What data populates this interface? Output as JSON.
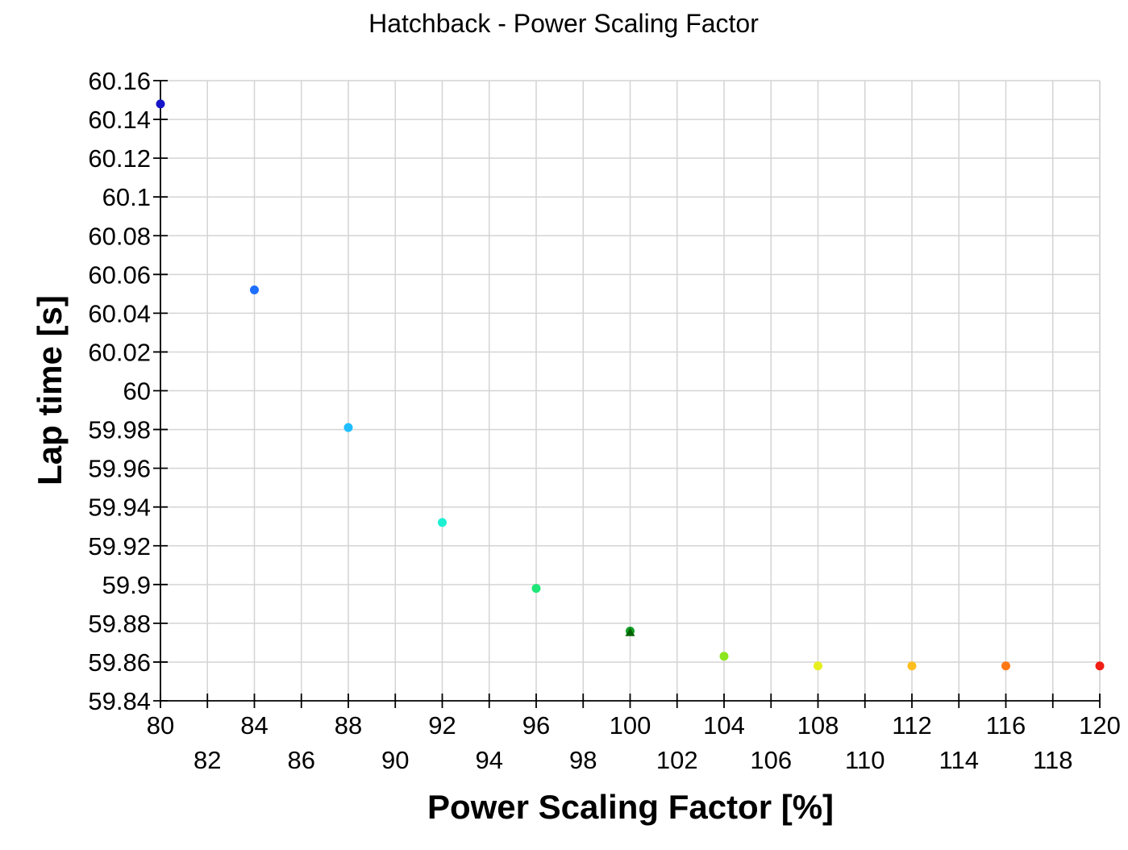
{
  "chart_data": {
    "type": "scatter",
    "title": "Hatchback - Power Scaling Factor",
    "xlabel": "Power Scaling Factor [%]",
    "ylabel": "Lap time [s]",
    "xlim": [
      80,
      120
    ],
    "ylim": [
      59.84,
      60.16
    ],
    "grid": true,
    "x_ticks_row1": [
      "80",
      "84",
      "88",
      "92",
      "96",
      "100",
      "104",
      "108",
      "112",
      "116",
      "120"
    ],
    "x_ticks_row2": [
      "82",
      "86",
      "90",
      "94",
      "98",
      "102",
      "106",
      "110",
      "114",
      "118"
    ],
    "y_ticks": [
      "60.16",
      "60.14",
      "60.12",
      "60.1",
      "60.08",
      "60.06",
      "60.04",
      "60.02",
      "60",
      "59.98",
      "59.96",
      "59.94",
      "59.92",
      "59.9",
      "59.88",
      "59.86",
      "59.84"
    ],
    "points": [
      {
        "x": 80,
        "y": 60.148,
        "color": "#1414c8"
      },
      {
        "x": 84,
        "y": 60.052,
        "color": "#1e6eff"
      },
      {
        "x": 88,
        "y": 59.981,
        "color": "#1ebeff"
      },
      {
        "x": 92,
        "y": 59.932,
        "color": "#1ef0d2"
      },
      {
        "x": 96,
        "y": 59.898,
        "color": "#1ee678"
      },
      {
        "x": 100,
        "y": 59.876,
        "color": "#14a028"
      },
      {
        "x": 104,
        "y": 59.863,
        "color": "#8ce61e"
      },
      {
        "x": 108,
        "y": 59.858,
        "color": "#e6f01e"
      },
      {
        "x": 112,
        "y": 59.858,
        "color": "#ffbe1e"
      },
      {
        "x": 116,
        "y": 59.858,
        "color": "#ff7814"
      },
      {
        "x": 120,
        "y": 59.858,
        "color": "#f01e14"
      }
    ],
    "highlight_marker": {
      "x": 100,
      "y": 59.876,
      "shape": "triangle",
      "color": "#006400"
    }
  }
}
